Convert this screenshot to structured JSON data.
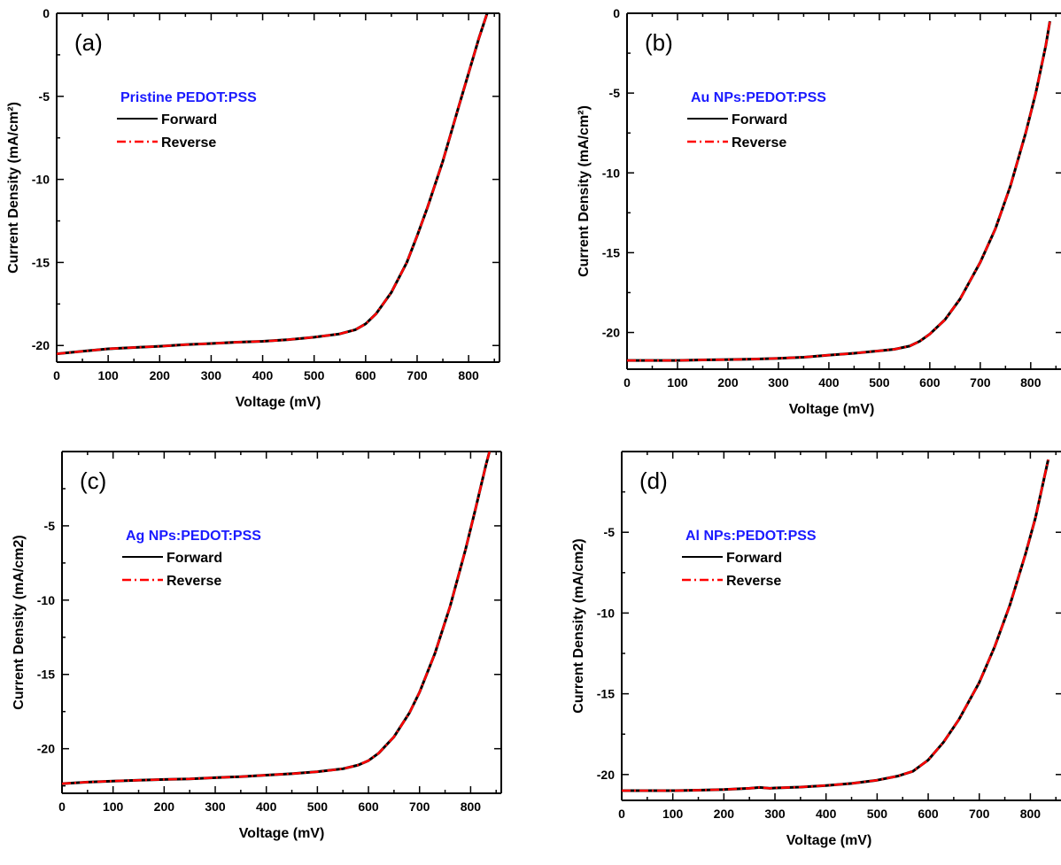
{
  "colors": {
    "forward": "#000000",
    "reverse": "#ff0000",
    "legend_title": "#1a1aff",
    "axis": "#000000"
  },
  "chart_data": [
    {
      "type": "line",
      "panel_label": "(a)",
      "legend_title": "Pristine PEDOT:PSS",
      "xlabel": "Voltage (mV)",
      "ylabel": "Current Density (mA/cm²)",
      "xlim": [
        0,
        860
      ],
      "ylim": [
        -21,
        0
      ],
      "xticks": [
        0,
        100,
        200,
        300,
        400,
        500,
        600,
        700,
        800
      ],
      "yticks": [
        -20,
        -15,
        -10,
        -5,
        0
      ],
      "legend_position": "top-left",
      "series": [
        {
          "name": "Forward",
          "style": "solid",
          "x": [
            0,
            50,
            100,
            150,
            200,
            250,
            300,
            350,
            400,
            450,
            500,
            550,
            580,
            600,
            620,
            650,
            680,
            700,
            720,
            750,
            780,
            800,
            820,
            836
          ],
          "y": [
            -20.5,
            -20.35,
            -20.2,
            -20.12,
            -20.05,
            -19.95,
            -19.88,
            -19.8,
            -19.75,
            -19.65,
            -19.5,
            -19.3,
            -19.05,
            -18.7,
            -18.1,
            -16.8,
            -15.0,
            -13.4,
            -11.7,
            -8.9,
            -5.7,
            -3.6,
            -1.5,
            0
          ]
        },
        {
          "name": "Reverse",
          "style": "dash-dot",
          "x": [
            0,
            50,
            100,
            150,
            200,
            250,
            300,
            350,
            400,
            450,
            500,
            550,
            580,
            600,
            620,
            650,
            680,
            700,
            720,
            750,
            780,
            800,
            820,
            836
          ],
          "y": [
            -20.5,
            -20.35,
            -20.2,
            -20.12,
            -20.05,
            -19.95,
            -19.88,
            -19.8,
            -19.75,
            -19.65,
            -19.5,
            -19.3,
            -19.05,
            -18.7,
            -18.1,
            -16.8,
            -15.0,
            -13.4,
            -11.7,
            -8.9,
            -5.7,
            -3.6,
            -1.5,
            0
          ]
        }
      ]
    },
    {
      "type": "line",
      "panel_label": "(b)",
      "legend_title": "Au NPs:PEDOT:PSS",
      "xlabel": "Voltage (mV)",
      "ylabel": "Current Density (mA/cm²)",
      "xlim": [
        0,
        860
      ],
      "ylim": [
        -22.3,
        0
      ],
      "xticks": [
        0,
        100,
        200,
        300,
        400,
        500,
        600,
        700,
        800
      ],
      "yticks": [
        -20,
        -15,
        -10,
        -5,
        0
      ],
      "legend_position": "top-left",
      "series": [
        {
          "name": "Forward",
          "style": "solid",
          "x": [
            0,
            50,
            100,
            150,
            200,
            250,
            300,
            350,
            400,
            450,
            500,
            530,
            560,
            580,
            600,
            630,
            660,
            700,
            730,
            760,
            790,
            810,
            830,
            838
          ],
          "y": [
            -21.75,
            -21.75,
            -21.75,
            -21.72,
            -21.7,
            -21.67,
            -21.62,
            -21.55,
            -21.42,
            -21.3,
            -21.15,
            -21.05,
            -20.85,
            -20.55,
            -20.1,
            -19.2,
            -17.9,
            -15.6,
            -13.5,
            -10.8,
            -7.5,
            -5.0,
            -2.0,
            -0.5
          ]
        },
        {
          "name": "Reverse",
          "style": "dash-dot",
          "x": [
            0,
            50,
            100,
            150,
            200,
            250,
            300,
            350,
            400,
            450,
            500,
            530,
            560,
            580,
            600,
            630,
            660,
            700,
            730,
            760,
            790,
            810,
            830,
            838
          ],
          "y": [
            -21.75,
            -21.75,
            -21.75,
            -21.72,
            -21.7,
            -21.67,
            -21.62,
            -21.55,
            -21.42,
            -21.3,
            -21.15,
            -21.05,
            -20.85,
            -20.55,
            -20.1,
            -19.2,
            -17.9,
            -15.6,
            -13.5,
            -10.8,
            -7.5,
            -5.0,
            -2.0,
            -0.5
          ]
        }
      ]
    },
    {
      "type": "line",
      "panel_label": "(c)",
      "legend_title": "Ag NPs:PEDOT:PSS",
      "xlabel": "Voltage (mV)",
      "ylabel": "Current Density (mA/cm2)",
      "xlim": [
        0,
        860
      ],
      "ylim": [
        -23,
        0
      ],
      "xticks": [
        0,
        100,
        200,
        300,
        400,
        500,
        600,
        700,
        800
      ],
      "yticks": [
        -20,
        -15,
        -10,
        -5
      ],
      "legend_position": "top-left",
      "series": [
        {
          "name": "Forward",
          "style": "solid",
          "x": [
            0,
            50,
            100,
            150,
            200,
            250,
            300,
            350,
            400,
            450,
            500,
            550,
            580,
            600,
            620,
            650,
            680,
            700,
            730,
            760,
            790,
            810,
            830,
            837
          ],
          "y": [
            -22.35,
            -22.25,
            -22.18,
            -22.12,
            -22.07,
            -22.03,
            -21.95,
            -21.88,
            -21.78,
            -21.68,
            -21.55,
            -21.35,
            -21.1,
            -20.8,
            -20.3,
            -19.2,
            -17.6,
            -16.2,
            -13.6,
            -10.4,
            -6.6,
            -3.8,
            -0.9,
            0
          ]
        },
        {
          "name": "Reverse",
          "style": "dash-dot",
          "x": [
            0,
            50,
            100,
            150,
            200,
            250,
            300,
            350,
            400,
            450,
            500,
            550,
            580,
            600,
            620,
            650,
            680,
            700,
            730,
            760,
            790,
            810,
            830,
            837
          ],
          "y": [
            -22.35,
            -22.25,
            -22.18,
            -22.12,
            -22.07,
            -22.03,
            -21.95,
            -21.88,
            -21.78,
            -21.68,
            -21.55,
            -21.35,
            -21.1,
            -20.8,
            -20.3,
            -19.2,
            -17.6,
            -16.2,
            -13.6,
            -10.4,
            -6.6,
            -3.8,
            -0.9,
            0
          ]
        }
      ]
    },
    {
      "type": "line",
      "panel_label": "(d)",
      "legend_title": "Al NPs:PEDOT:PSS",
      "xlabel": "Voltage (mV)",
      "ylabel": "Current Density (mA/cm2)",
      "xlim": [
        0,
        860
      ],
      "ylim": [
        -21.6,
        0
      ],
      "xticks": [
        0,
        100,
        200,
        300,
        400,
        500,
        600,
        700,
        800
      ],
      "yticks": [
        -20,
        -15,
        -10,
        -5
      ],
      "legend_position": "top-left",
      "series": [
        {
          "name": "Forward",
          "style": "solid",
          "x": [
            0,
            50,
            100,
            150,
            200,
            250,
            270,
            290,
            300,
            350,
            400,
            450,
            500,
            540,
            570,
            600,
            630,
            660,
            700,
            730,
            760,
            790,
            810,
            835
          ],
          "y": [
            -21.0,
            -21.0,
            -21.0,
            -20.97,
            -20.93,
            -20.85,
            -20.8,
            -20.85,
            -20.83,
            -20.78,
            -20.68,
            -20.55,
            -20.35,
            -20.1,
            -19.8,
            -19.1,
            -18.0,
            -16.6,
            -14.3,
            -12.1,
            -9.5,
            -6.4,
            -4.1,
            -0.5
          ]
        },
        {
          "name": "Reverse",
          "style": "dash-dot",
          "x": [
            0,
            50,
            100,
            150,
            200,
            250,
            270,
            290,
            300,
            350,
            400,
            450,
            500,
            540,
            570,
            600,
            630,
            660,
            700,
            730,
            760,
            790,
            810,
            835
          ],
          "y": [
            -21.0,
            -21.0,
            -21.0,
            -20.97,
            -20.93,
            -20.85,
            -20.8,
            -20.85,
            -20.83,
            -20.78,
            -20.68,
            -20.55,
            -20.35,
            -20.1,
            -19.8,
            -19.1,
            -18.0,
            -16.6,
            -14.3,
            -12.1,
            -9.5,
            -6.4,
            -4.1,
            -0.5
          ]
        }
      ]
    }
  ]
}
